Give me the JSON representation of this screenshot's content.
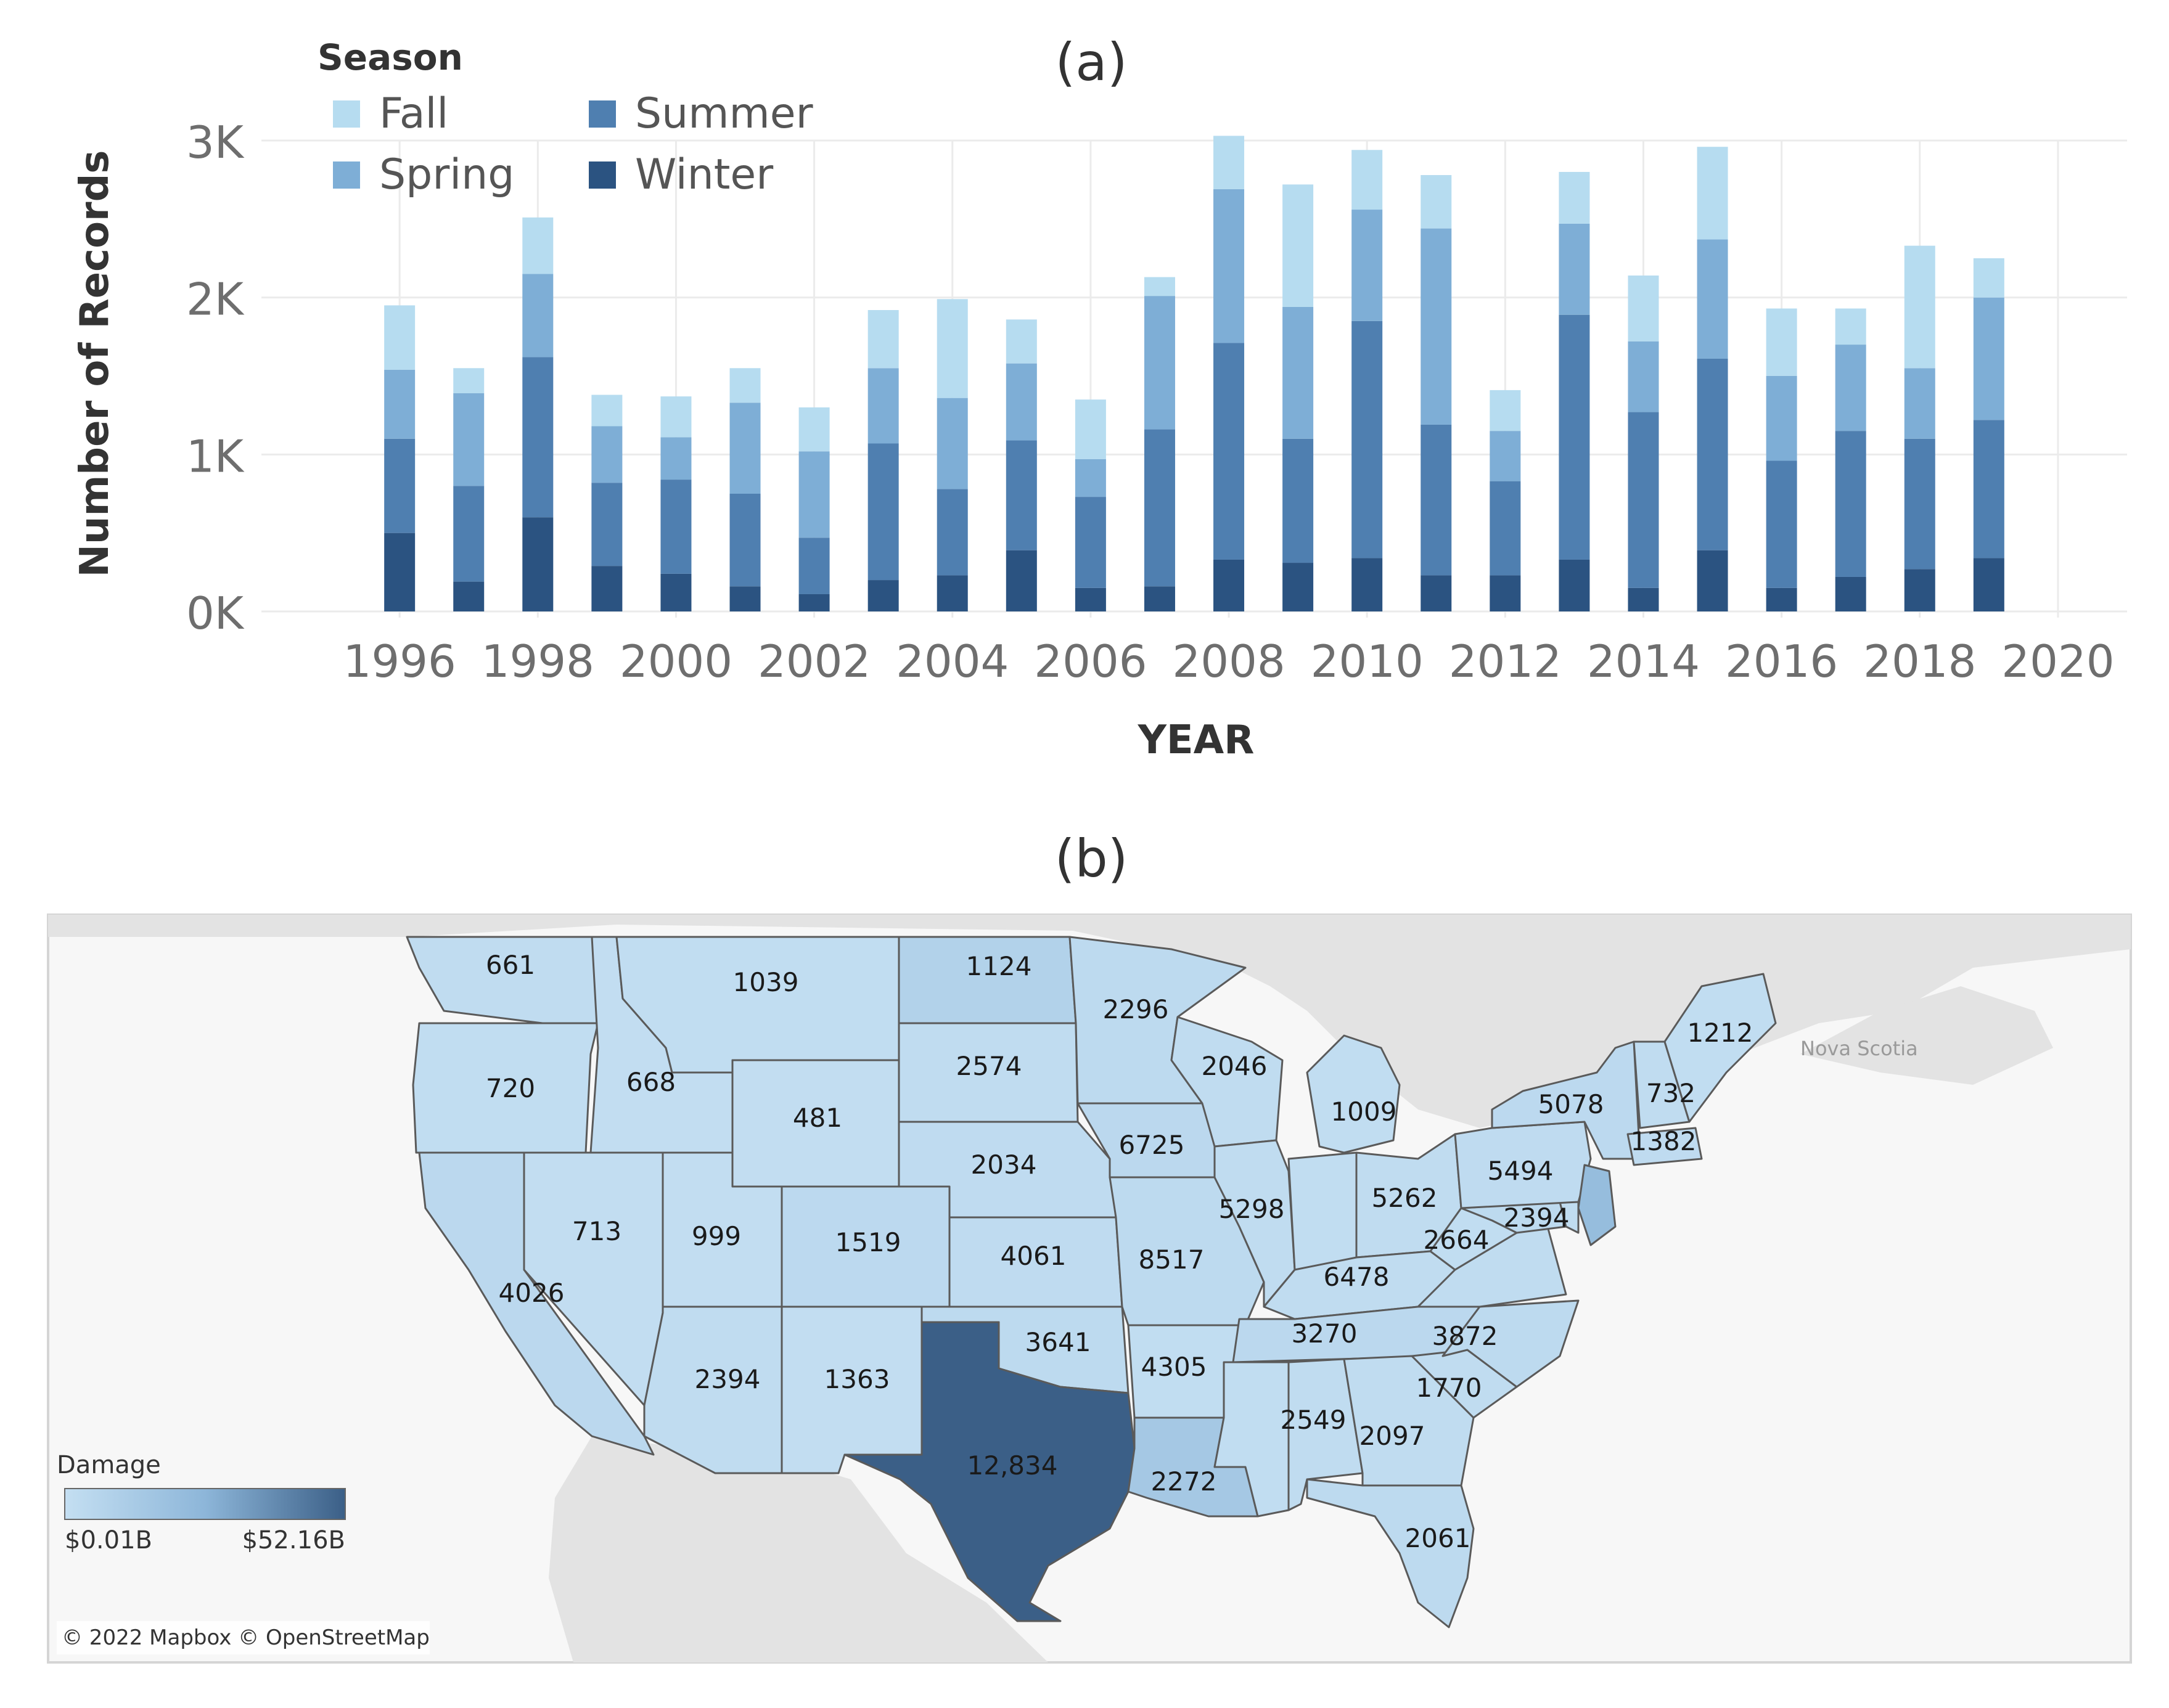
{
  "panel_a": {
    "label": "(a)",
    "legend_title": "Season",
    "xaxis_title": "YEAR",
    "yaxis_title": "Number of Records"
  },
  "panel_b": {
    "label": "(b)",
    "legend_title": "Damage",
    "legend_min": "$0.01B",
    "legend_max": "$52.16B",
    "attribution": "© 2022 Mapbox © OpenStreetMap",
    "place_label": "Nova Scotia"
  },
  "colors": {
    "Fall": "#b6dcf0",
    "Spring": "#7eaed6",
    "Summer": "#4f7fb0",
    "Winter": "#2b5381",
    "grid": "#ebebeb",
    "axis_text": "#6e6e6e",
    "ramp_low": "#c4dff2",
    "ramp_mid": "#8db6d9",
    "ramp_high": "#3b5f87",
    "land": "#e3e3e3",
    "water": "#f7f7f7",
    "state_border": "#5a5a5a"
  },
  "chart_data": [
    {
      "type": "bar",
      "stacked": true,
      "title": "(a)",
      "xlabel": "YEAR",
      "ylabel": "Number of Records",
      "x_ticks": [
        1996,
        1998,
        2000,
        2002,
        2004,
        2006,
        2008,
        2010,
        2012,
        2014,
        2016,
        2018,
        2020
      ],
      "xlim": [
        1994,
        2021
      ],
      "y_ticks": [
        0,
        1000,
        2000,
        3000
      ],
      "y_tick_labels": [
        "0K",
        "1K",
        "2K",
        "3K"
      ],
      "ylim": [
        0,
        3000
      ],
      "grid": true,
      "legend_title": "Season",
      "legend_position": "top-left",
      "categories": [
        1996,
        1997,
        1998,
        1999,
        2000,
        2001,
        2002,
        2003,
        2004,
        2005,
        2006,
        2007,
        2008,
        2009,
        2010,
        2011,
        2012,
        2013,
        2014,
        2015,
        2016,
        2017,
        2018,
        2019
      ],
      "series": [
        {
          "name": "Winter",
          "values": [
            500,
            190,
            600,
            290,
            240,
            160,
            110,
            200,
            230,
            390,
            150,
            160,
            330,
            310,
            340,
            230,
            230,
            330,
            150,
            390,
            150,
            220,
            270,
            340
          ]
        },
        {
          "name": "Summer",
          "values": [
            600,
            610,
            1020,
            530,
            600,
            590,
            360,
            870,
            550,
            700,
            580,
            1000,
            1380,
            790,
            1510,
            960,
            600,
            1560,
            1120,
            1220,
            810,
            930,
            830,
            880
          ]
        },
        {
          "name": "Spring",
          "values": [
            440,
            590,
            530,
            360,
            270,
            580,
            550,
            480,
            580,
            490,
            240,
            850,
            980,
            840,
            710,
            1250,
            320,
            580,
            450,
            760,
            540,
            550,
            450,
            780
          ]
        },
        {
          "name": "Fall",
          "values": [
            410,
            160,
            360,
            200,
            260,
            220,
            280,
            370,
            630,
            280,
            380,
            120,
            340,
            780,
            380,
            340,
            260,
            330,
            420,
            590,
            430,
            230,
            780,
            250
          ]
        }
      ]
    },
    {
      "type": "map",
      "title": "(b)",
      "legend_title": "Damage",
      "legend_range": [
        "$0.01B",
        "$52.16B"
      ],
      "color_metric": "Damage",
      "value_metric": "Number of Records",
      "states": [
        {
          "state": "Washington",
          "value": "661",
          "level": 0.04
        },
        {
          "state": "Oregon",
          "value": "720",
          "level": 0.03
        },
        {
          "state": "California",
          "value": "4026",
          "level": 0.08
        },
        {
          "state": "Nevada",
          "value": "713",
          "level": 0.02
        },
        {
          "state": "Idaho",
          "value": "668",
          "level": 0.02
        },
        {
          "state": "Montana",
          "value": "1039",
          "level": 0.03
        },
        {
          "state": "Wyoming",
          "value": "481",
          "level": 0.02
        },
        {
          "state": "Utah",
          "value": "999",
          "level": 0.02
        },
        {
          "state": "Arizona",
          "value": "2394",
          "level": 0.04
        },
        {
          "state": "Colorado",
          "value": "1519",
          "level": 0.07
        },
        {
          "state": "New Mexico",
          "value": "1363",
          "level": 0.02
        },
        {
          "state": "North Dakota",
          "value": "1124",
          "level": 0.16
        },
        {
          "state": "South Dakota",
          "value": "2574",
          "level": 0.04
        },
        {
          "state": "Nebraska",
          "value": "2034",
          "level": 0.05
        },
        {
          "state": "Kansas",
          "value": "4061",
          "level": 0.05
        },
        {
          "state": "Oklahoma",
          "value": "3641",
          "level": 0.06
        },
        {
          "state": "Texas",
          "value": "12,834",
          "level": 1.0
        },
        {
          "state": "Minnesota",
          "value": "2296",
          "level": 0.06
        },
        {
          "state": "Iowa",
          "value": "6725",
          "level": 0.08
        },
        {
          "state": "Missouri",
          "value": "8517",
          "level": 0.06
        },
        {
          "state": "Arkansas",
          "value": "4305",
          "level": 0.03
        },
        {
          "state": "Louisiana",
          "value": "2272",
          "level": 0.28
        },
        {
          "state": "Wisconsin",
          "value": "2046",
          "level": 0.04
        },
        {
          "state": "Illinois",
          "value": "5298",
          "level": 0.04
        },
        {
          "state": "Michigan",
          "value": "1009",
          "level": 0.03
        },
        {
          "state": "Indiana",
          "value": "",
          "level": 0.03
        },
        {
          "state": "Ohio",
          "value": "5262",
          "level": 0.04
        },
        {
          "state": "Kentucky",
          "value": "6478",
          "level": 0.04
        },
        {
          "state": "Tennessee",
          "value": "3270",
          "level": 0.08
        },
        {
          "state": "Mississippi",
          "value": "",
          "level": 0.03
        },
        {
          "state": "Alabama",
          "value": "2549",
          "level": 0.04
        },
        {
          "state": "Georgia",
          "value": "2097",
          "level": 0.04
        },
        {
          "state": "Florida",
          "value": "2061",
          "level": 0.06
        },
        {
          "state": "South Carolina",
          "value": "1770",
          "level": 0.04
        },
        {
          "state": "North Carolina",
          "value": "3872",
          "level": 0.06
        },
        {
          "state": "Virginia",
          "value": "",
          "level": 0.04
        },
        {
          "state": "West Virginia",
          "value": "2664",
          "level": 0.03
        },
        {
          "state": "Maryland",
          "value": "2394",
          "level": 0.06
        },
        {
          "state": "Delaware",
          "value": "",
          "level": 0.04
        },
        {
          "state": "Pennsylvania",
          "value": "5494",
          "level": 0.05
        },
        {
          "state": "New Jersey",
          "value": "",
          "level": 0.42
        },
        {
          "state": "New York",
          "value": "5078",
          "level": 0.07
        },
        {
          "state": "New England",
          "value": "1382",
          "level": 0.05
        },
        {
          "state": "Vermont/New Hampshire",
          "value": "732",
          "level": 0.04
        },
        {
          "state": "Maine",
          "value": "1212",
          "level": 0.03
        }
      ]
    }
  ]
}
